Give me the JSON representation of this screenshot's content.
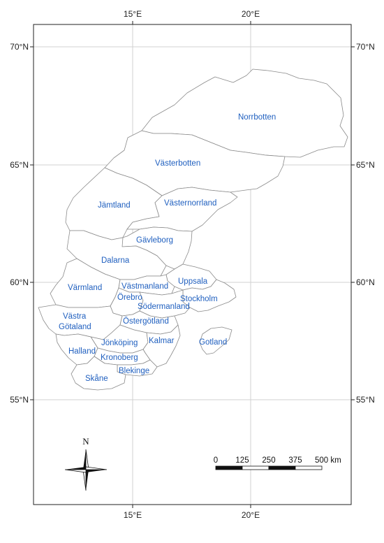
{
  "map": {
    "lon_ticks": [
      "15°E",
      "20°E"
    ],
    "lat_ticks": [
      "70°N",
      "65°N",
      "60°N",
      "55°N"
    ],
    "regions": [
      {
        "key": "norrbotten",
        "label": "Norrbotten"
      },
      {
        "key": "vasterbotten",
        "label": "Västerbotten"
      },
      {
        "key": "jamtland",
        "label": "Jämtland"
      },
      {
        "key": "vasternorrland",
        "label": "Västernorrland"
      },
      {
        "key": "gavleborg",
        "label": "Gävleborg"
      },
      {
        "key": "dalarna",
        "label": "Dalarna"
      },
      {
        "key": "uppsala",
        "label": "Uppsala"
      },
      {
        "key": "varmland",
        "label": "Värmland"
      },
      {
        "key": "vastmanland",
        "label": "Västmanland"
      },
      {
        "key": "orebro",
        "label": "Örebro"
      },
      {
        "key": "stockholm",
        "label": "Stockholm"
      },
      {
        "key": "sodermanland",
        "label": "Södermanland"
      },
      {
        "key": "vastra_gotaland",
        "label": "Västra\nGötaland"
      },
      {
        "key": "ostergotland",
        "label": "Östergötland"
      },
      {
        "key": "jonkoping",
        "label": "Jönköping"
      },
      {
        "key": "kalmar",
        "label": "Kalmar"
      },
      {
        "key": "gotland",
        "label": "Gotland"
      },
      {
        "key": "halland",
        "label": "Halland"
      },
      {
        "key": "kronoberg",
        "label": "Kronoberg"
      },
      {
        "key": "blekinge",
        "label": "Blekinge"
      },
      {
        "key": "skane",
        "label": "Skåne"
      }
    ],
    "north_arrow_label": "N",
    "scale_bar": {
      "labels": [
        "0",
        "125",
        "250",
        "375",
        "500 km"
      ],
      "unit": "km"
    }
  }
}
